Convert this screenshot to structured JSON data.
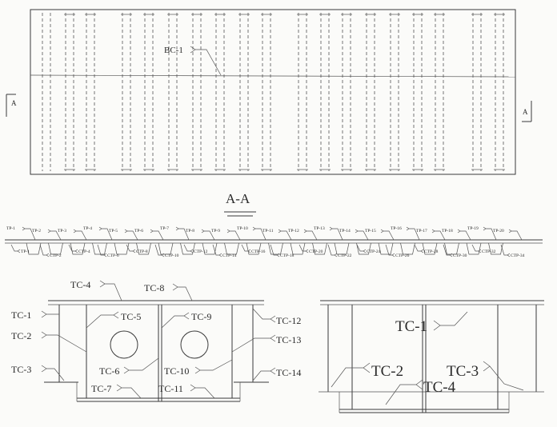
{
  "plan": {
    "callout": "BC-1",
    "section_marker_left": "A",
    "section_marker_right": "A"
  },
  "section": {
    "title": "A-A",
    "top_labels": [
      "TP-1",
      "TP-2",
      "TP-3",
      "TP-4",
      "TP-5",
      "TP-6",
      "TP-7",
      "TP-8",
      "TP-9",
      "TP-10",
      "TP-11",
      "TP-12",
      "TP-13",
      "TP-14",
      "TP-15",
      "TP-16",
      "TP-17",
      "TP-18",
      "TP-19",
      "TP-20"
    ],
    "bottom_labels": [
      "TP-1",
      "CTP-2",
      "CTP-4",
      "CTP-6",
      "CTP-8",
      "CTP-10",
      "CTP-12",
      "CTP-14",
      "CTP-16",
      "CTP-18",
      "CTP-20",
      "CTP-22",
      "CTP-24",
      "CTP-26",
      "CTP-28",
      "CTP-30",
      "CTP-32",
      "CTP-34"
    ]
  },
  "detail_left": {
    "labels": {
      "tc1": "TC-1",
      "tc2": "TC-2",
      "tc3": "TC-3",
      "tc4": "TC-4",
      "tc5": "TC-5",
      "tc6": "TC-6",
      "tc7": "TC-7",
      "tc8": "TC-8",
      "tc9": "TC-9",
      "tc10": "TC-10",
      "tc11": "TC-11",
      "tc12": "TC-12",
      "tc13": "TC-13",
      "tc14": "TC-14"
    }
  },
  "detail_right": {
    "labels": {
      "tc1": "TC-1",
      "tc2": "TC-2",
      "tc3": "TC-3",
      "tc4": "TC-4"
    }
  }
}
